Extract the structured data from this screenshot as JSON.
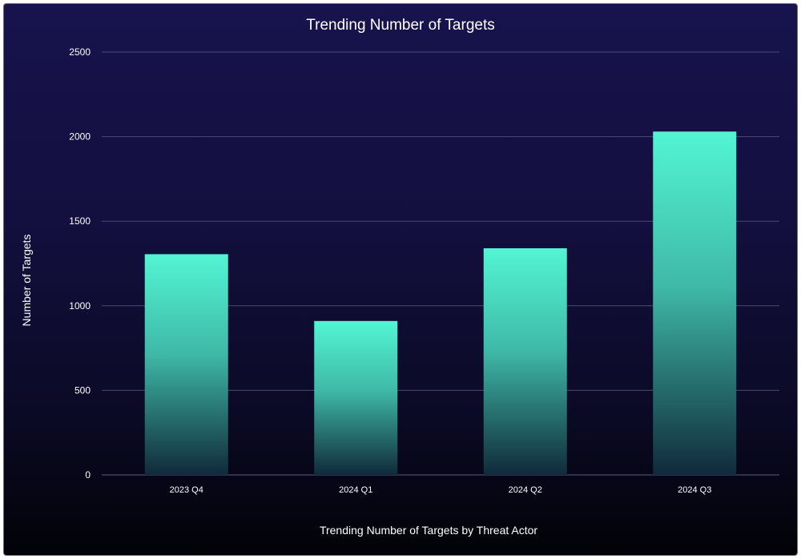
{
  "chart_data": {
    "type": "bar",
    "title": "Trending Number of Targets",
    "xlabel": "Trending Number of Targets by Threat Actor",
    "ylabel": "Number of Targets",
    "categories": [
      "2023 Q4",
      "2024 Q1",
      "2024 Q2",
      "2024 Q3"
    ],
    "values": [
      1305,
      910,
      1340,
      2030
    ],
    "ylim": [
      0,
      2500
    ],
    "yticks": [
      "0",
      "500",
      "1000",
      "1500",
      "2000",
      "2500"
    ],
    "grid": true,
    "legend": "none",
    "colors": {
      "bar_top": "#52f5d3",
      "bar_bottom": "#1a4a5a"
    }
  }
}
